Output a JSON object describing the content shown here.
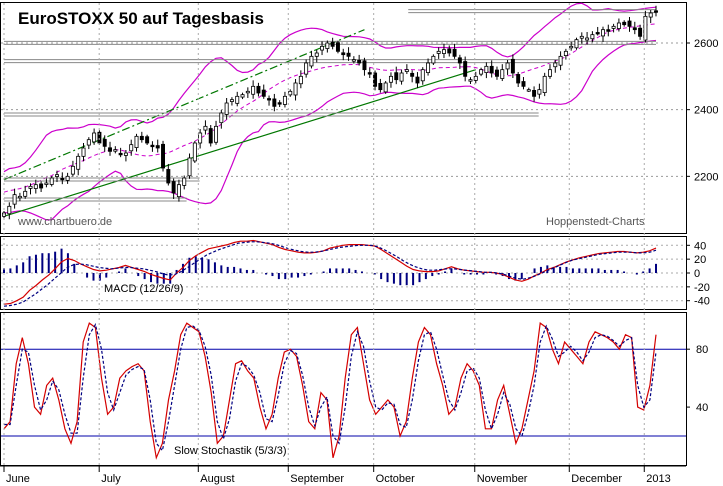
{
  "chart_data": [
    {
      "type": "candlestick",
      "title": "EuroSTOXX 50 auf Tagesbasis",
      "watermark_left": "www.chartbuero.de",
      "watermark_right": "Hoppenstedt-Charts",
      "y_ticks": [
        2200,
        2400,
        2600
      ],
      "ylim": [
        2030,
        2720
      ],
      "overlays": [
        "Bollinger Bands",
        "trend channel",
        "support lines"
      ],
      "close": [
        2090,
        2110,
        2145,
        2140,
        2155,
        2170,
        2175,
        2165,
        2180,
        2195,
        2205,
        2190,
        2200,
        2230,
        2260,
        2285,
        2310,
        2330,
        2300,
        2290,
        2275,
        2280,
        2265,
        2270,
        2295,
        2320,
        2310,
        2300,
        2290,
        2285,
        2225,
        2180,
        2150,
        2175,
        2195,
        2255,
        2300,
        2330,
        2350,
        2300,
        2350,
        2390,
        2420,
        2430,
        2440,
        2445,
        2455,
        2470,
        2450,
        2440,
        2430,
        2410,
        2420,
        2440,
        2455,
        2480,
        2500,
        2540,
        2560,
        2570,
        2590,
        2600,
        2590,
        2575,
        2565,
        2560,
        2550,
        2540,
        2520,
        2510,
        2470,
        2460,
        2480,
        2500,
        2490,
        2510,
        2520,
        2500,
        2480,
        2520,
        2540,
        2560,
        2575,
        2580,
        2570,
        2560,
        2540,
        2500,
        2490,
        2500,
        2520,
        2530,
        2510,
        2500,
        2520,
        2540,
        2510,
        2480,
        2470,
        2460,
        2440,
        2460,
        2500,
        2520,
        2540,
        2560,
        2575,
        2590,
        2610,
        2620,
        2615,
        2625,
        2630,
        2640,
        2635,
        2650,
        2660,
        2655,
        2650,
        2640,
        2620,
        2680,
        2690,
        2695
      ]
    },
    {
      "type": "line",
      "label": "MACD (12/26/9)",
      "y_ticks": [
        40,
        20,
        0,
        -20,
        -40
      ],
      "ylim": [
        -52,
        52
      ],
      "series": [
        {
          "color": "#d40000",
          "values": [
            -45,
            -44,
            -40,
            -35,
            -25,
            -18,
            -10,
            -3,
            6,
            16,
            21,
            18,
            13,
            9,
            5,
            3,
            4,
            6,
            8,
            11,
            8,
            5,
            2,
            -2,
            -5,
            -8,
            -10,
            0,
            8,
            18,
            25,
            30,
            35,
            37,
            39,
            41,
            44,
            46,
            46,
            47,
            45,
            43,
            41,
            37,
            34,
            32,
            30,
            29,
            29,
            30,
            32,
            36,
            38,
            40,
            41,
            41,
            41,
            40,
            39,
            34,
            28,
            22,
            16,
            10,
            5,
            3,
            2,
            2,
            3,
            6,
            9,
            6,
            4,
            3,
            2,
            1,
            1,
            0,
            -2,
            -6,
            -10,
            -12,
            -9,
            -4,
            0,
            5,
            8,
            12,
            16,
            19,
            22,
            24,
            26,
            28,
            29,
            30,
            31,
            31,
            30,
            29,
            30,
            32,
            36
          ]
        },
        {
          "color": "#000080",
          "dash": true,
          "values": [
            -48,
            -47,
            -45,
            -42,
            -36,
            -30,
            -23,
            -16,
            -8,
            0,
            8,
            12,
            13,
            12,
            10,
            8,
            7,
            6,
            7,
            8,
            8,
            7,
            6,
            4,
            2,
            -1,
            -3,
            -2,
            2,
            8,
            14,
            20,
            26,
            30,
            34,
            37,
            40,
            43,
            44,
            45,
            45,
            44,
            43,
            41,
            38,
            35,
            33,
            31,
            30,
            30,
            31,
            33,
            35,
            37,
            38,
            39,
            40,
            40,
            40,
            38,
            34,
            29,
            24,
            18,
            13,
            9,
            6,
            4,
            4,
            5,
            6,
            6,
            5,
            4,
            3,
            2,
            1,
            1,
            0,
            -2,
            -5,
            -8,
            -9,
            -7,
            -4,
            0,
            4,
            8,
            12,
            16,
            19,
            21,
            23,
            25,
            27,
            28,
            29,
            30,
            30,
            30,
            29,
            29,
            30,
            33
          ]
        }
      ],
      "histogram_color": "#000080"
    },
    {
      "type": "line",
      "label": "Slow Stochastik (5/3/3)",
      "y_ticks": [
        80,
        40
      ],
      "reference_lines": [
        20,
        80
      ],
      "ylim": [
        0,
        105
      ],
      "series": [
        {
          "color": "#d40000",
          "values": [
            25,
            30,
            70,
            88,
            70,
            40,
            35,
            55,
            60,
            45,
            25,
            15,
            30,
            85,
            98,
            95,
            60,
            35,
            40,
            60,
            65,
            68,
            70,
            65,
            30,
            5,
            15,
            45,
            65,
            90,
            98,
            95,
            92,
            75,
            50,
            15,
            20,
            45,
            70,
            72,
            65,
            60,
            40,
            25,
            35,
            60,
            78,
            80,
            75,
            55,
            30,
            25,
            50,
            45,
            5,
            20,
            60,
            90,
            95,
            70,
            45,
            35,
            40,
            45,
            40,
            20,
            30,
            60,
            85,
            95,
            90,
            70,
            55,
            35,
            40,
            60,
            70,
            65,
            55,
            25,
            25,
            45,
            55,
            35,
            15,
            25,
            45,
            65,
            98,
            95,
            80,
            70,
            85,
            80,
            75,
            70,
            85,
            92,
            90,
            88,
            85,
            80,
            90,
            88,
            40,
            38,
            55,
            90
          ]
        },
        {
          "color": "#000080",
          "dash": true,
          "values": [
            28,
            28,
            55,
            80,
            78,
            55,
            38,
            45,
            58,
            52,
            35,
            22,
            22,
            60,
            90,
            97,
            80,
            50,
            38,
            50,
            62,
            66,
            68,
            66,
            45,
            15,
            10,
            30,
            55,
            80,
            95,
            96,
            93,
            82,
            62,
            30,
            18,
            32,
            58,
            70,
            68,
            62,
            50,
            32,
            30,
            48,
            70,
            79,
            77,
            62,
            40,
            27,
            40,
            47,
            20,
            15,
            40,
            75,
            92,
            82,
            58,
            40,
            38,
            43,
            42,
            28,
            26,
            45,
            72,
            90,
            92,
            80,
            62,
            45,
            38,
            50,
            65,
            67,
            60,
            38,
            25,
            35,
            50,
            42,
            25,
            20,
            35,
            55,
            85,
            96,
            87,
            75,
            78,
            82,
            78,
            72,
            78,
            88,
            90,
            89,
            86,
            82,
            86,
            88,
            55,
            40,
            45,
            78
          ]
        }
      ],
      "reference_line_color": "#0000aa"
    }
  ],
  "x_axis": {
    "months": [
      "June",
      "July",
      "August",
      "September",
      "October",
      "November",
      "December",
      "2013"
    ]
  },
  "colors": {
    "candle_body": "#000000",
    "bollinger": "#cc00cc",
    "trend_green": "#007700",
    "dashed_magenta": "#cc00cc",
    "support_lines": "#888888"
  }
}
